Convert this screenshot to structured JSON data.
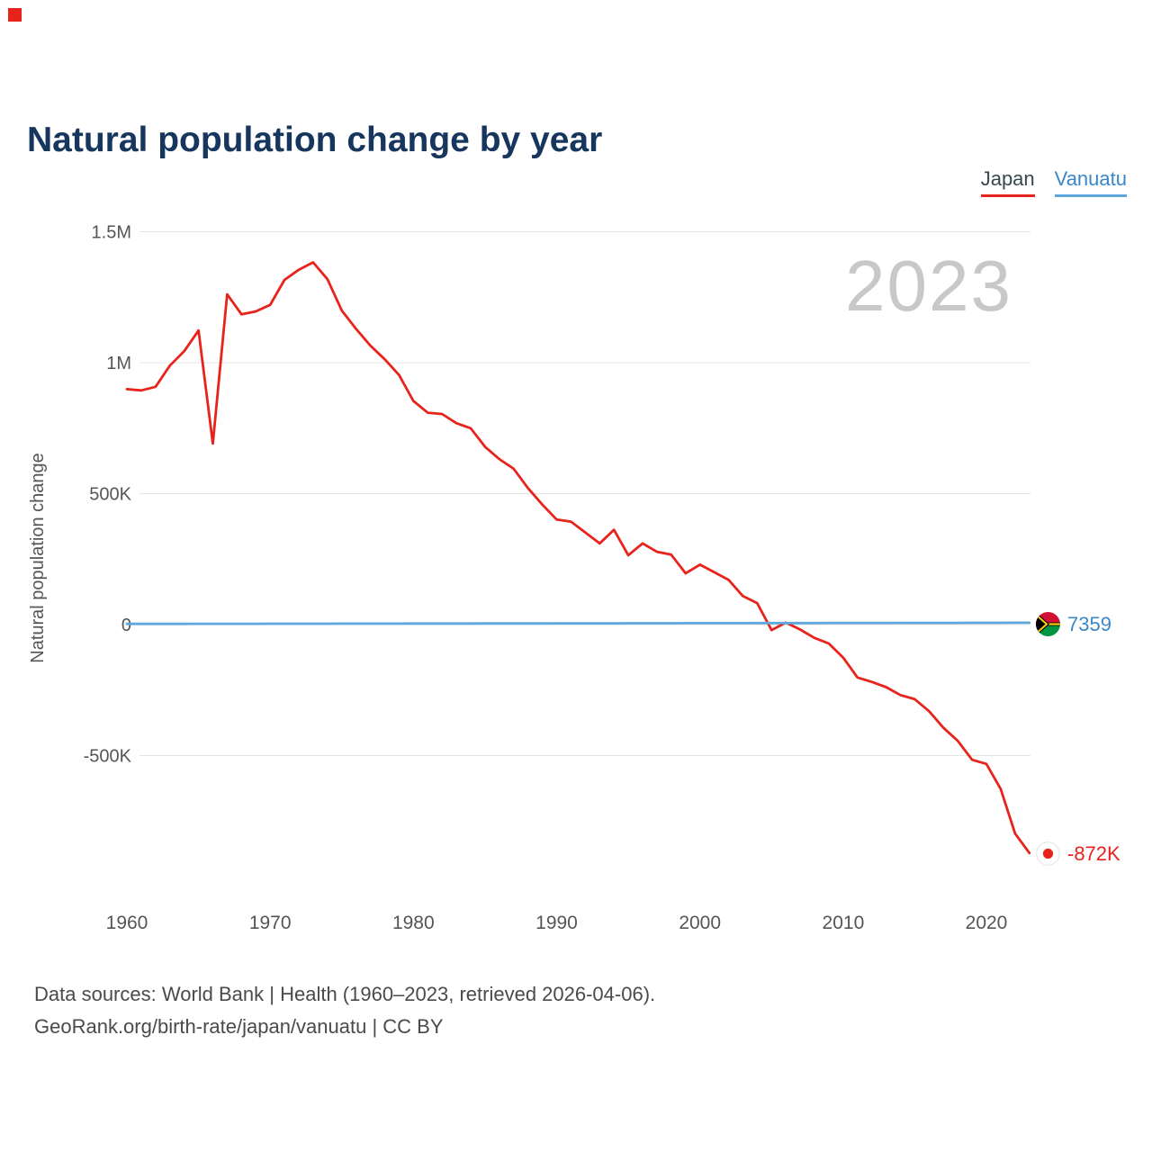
{
  "title": "Natural population change by year",
  "watermark": "2023",
  "legend": {
    "japan": {
      "label": "Japan",
      "color": "#e8231c"
    },
    "vanuatu": {
      "label": "Vanuatu",
      "color": "#5fa8dd"
    }
  },
  "end_labels": {
    "vanuatu": "7359",
    "japan": "-872K"
  },
  "footer": {
    "line1": "Data sources: World Bank | Health (1960–2023, retrieved 2026-04-06).",
    "line2": "GeoRank.org/birth-rate/japan/vanuatu | CC BY"
  },
  "colors": {
    "japan_line": "#e8231c",
    "vanuatu_line": "#5fa8dd",
    "title": "#17365d",
    "watermark": "#c8c8c8",
    "gridline": "#e4e4e4",
    "tick_label": "#555555"
  },
  "chart_data": {
    "type": "line",
    "title": "Natural population change by year",
    "xlabel": "",
    "ylabel": "Natural population change",
    "ylim": [
      -1000000,
      1500000
    ],
    "grid": true,
    "legend_position": "top-right",
    "yticks": [
      {
        "value": 1500000,
        "label": "1.5M"
      },
      {
        "value": 1000000,
        "label": "1M"
      },
      {
        "value": 500000,
        "label": "500K"
      },
      {
        "value": 0,
        "label": "0"
      },
      {
        "value": -500000,
        "label": "-500K"
      }
    ],
    "xticks": [
      1960,
      1970,
      1980,
      1990,
      2000,
      2010,
      2020
    ],
    "x": [
      1960,
      1961,
      1962,
      1963,
      1964,
      1965,
      1966,
      1967,
      1968,
      1969,
      1970,
      1971,
      1972,
      1973,
      1974,
      1975,
      1976,
      1977,
      1978,
      1979,
      1980,
      1981,
      1982,
      1983,
      1984,
      1985,
      1986,
      1987,
      1988,
      1989,
      1990,
      1991,
      1992,
      1993,
      1994,
      1995,
      1996,
      1997,
      1998,
      1999,
      2000,
      2001,
      2002,
      2003,
      2004,
      2005,
      2006,
      2007,
      2008,
      2009,
      2010,
      2011,
      2012,
      2013,
      2014,
      2015,
      2016,
      2017,
      2018,
      2019,
      2020,
      2021,
      2022,
      2023
    ],
    "series": [
      {
        "name": "Japan",
        "color": "#e8231c",
        "end_label": "-872K",
        "values": [
          899000,
          894000,
          908000,
          989000,
          1044000,
          1123000,
          691000,
          1261000,
          1185000,
          1196000,
          1221000,
          1316000,
          1355000,
          1383000,
          1319000,
          1199000,
          1129000,
          1065000,
          1013000,
          953000,
          854000,
          809000,
          804000,
          769000,
          750000,
          679000,
          632000,
          595000,
          521000,
          458000,
          401000,
          393000,
          352000,
          310000,
          362000,
          265000,
          310000,
          278000,
          267000,
          196000,
          229000,
          200000,
          171000,
          109000,
          82000,
          -21000,
          8000,
          -19000,
          -51000,
          -72000,
          -126000,
          -202000,
          -219000,
          -239000,
          -269000,
          -285000,
          -331000,
          -394000,
          -444000,
          -516000,
          -532000,
          -628000,
          -798000,
          -872000
        ]
      },
      {
        "name": "Vanuatu",
        "color": "#5fa8dd",
        "end_label": "7359",
        "values": [
          2600,
          2670,
          2740,
          2810,
          2880,
          2950,
          3020,
          3090,
          3160,
          3230,
          3300,
          3370,
          3440,
          3510,
          3580,
          3650,
          3720,
          3790,
          3860,
          3930,
          4000,
          4070,
          4140,
          4210,
          4280,
          4350,
          4420,
          4490,
          4560,
          4630,
          4700,
          4770,
          4840,
          4910,
          4980,
          5050,
          5120,
          5190,
          5260,
          5330,
          5400,
          5470,
          5540,
          5610,
          5680,
          5750,
          5820,
          5890,
          5960,
          6030,
          6100,
          6170,
          6240,
          6310,
          6380,
          6450,
          6520,
          6590,
          6660,
          6730,
          6800,
          6990,
          7180,
          7359
        ]
      }
    ]
  }
}
